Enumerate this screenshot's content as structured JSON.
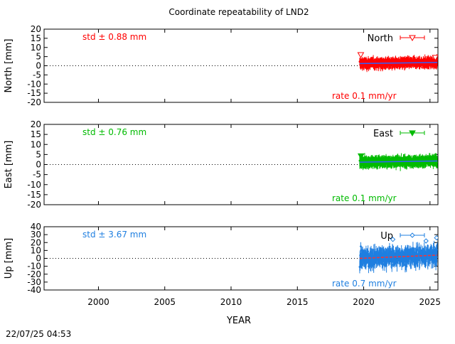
{
  "title": "Coordinate repeatability of LND2",
  "timestamp": "22/07/25 04:53",
  "chart_data": {
    "type": "scatter",
    "title": "Coordinate repeatability of LND2",
    "xlabel": "YEAR",
    "xlim": [
      1995.9,
      2025.6
    ],
    "xticks": [
      2000,
      2005,
      2010,
      2015,
      2020,
      2025
    ],
    "data_start_year": 2019.7,
    "data_end_year": 2025.55,
    "panels": [
      {
        "key": "north",
        "ylabel": "North [mm]",
        "legend": "North",
        "color": "#ff0000",
        "ylim": [
          -20,
          20
        ],
        "yticks": [
          20,
          15,
          10,
          5,
          0,
          -5,
          -10,
          -15,
          -20
        ],
        "std_label": "std ± 0.88 mm",
        "rate_label": "rate  0.1 mm/yr",
        "rate_mm_per_yr": 0.1,
        "std_mm": 0.88,
        "marker": "triangle-down-open"
      },
      {
        "key": "east",
        "ylabel": "East [mm]",
        "legend": "East",
        "color": "#00bb00",
        "ylim": [
          -20,
          20
        ],
        "yticks": [
          20,
          15,
          10,
          5,
          0,
          -5,
          -10,
          -15,
          -20
        ],
        "std_label": "std ± 0.76 mm",
        "rate_label": "rate  0.1 mm/yr",
        "rate_mm_per_yr": 0.1,
        "std_mm": 0.76,
        "marker": "triangle-down-filled"
      },
      {
        "key": "up",
        "ylabel": "Up [mm]",
        "legend": "Up",
        "color": "#1f7fe0",
        "ylim": [
          -40,
          40
        ],
        "yticks": [
          40,
          30,
          20,
          10,
          0,
          -10,
          -20,
          -30,
          -40
        ],
        "std_label": "std ± 3.67 mm",
        "rate_label": "rate  0.7 mm/yr",
        "rate_mm_per_yr": 0.7,
        "std_mm": 3.67,
        "marker": "diamond-open"
      }
    ]
  }
}
